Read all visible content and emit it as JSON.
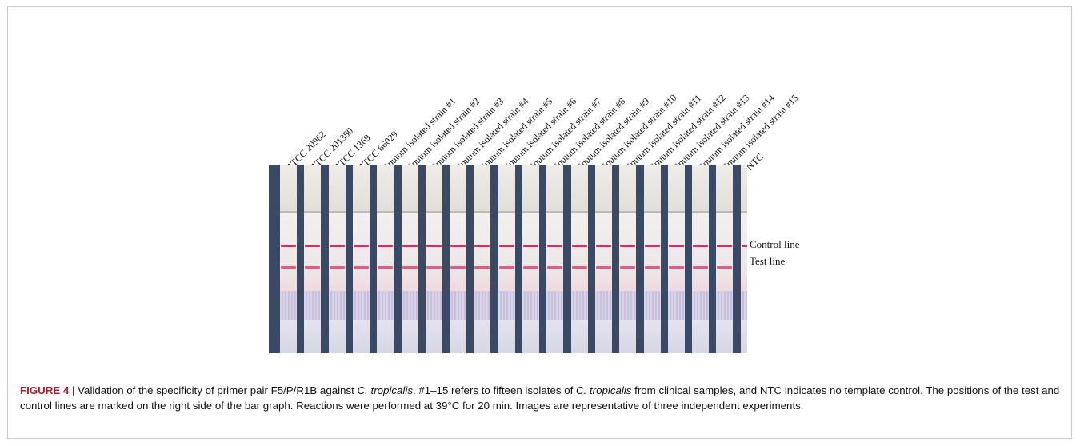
{
  "strip_labels": [
    "ATCC 20962",
    "ATCC 201380",
    "ATCC 1369",
    "ATCC 66029",
    "Sputum isolated strain #1",
    "Sputum isolated strain #2",
    "Sputum isolated strain #3",
    "Sputum isolated strain #4",
    "Sputum isolated strain #5",
    "Sputum isolated strain #6",
    "Sputum isolated strain #7",
    "Sputum isolated strain #8",
    "Sputum isolated strain #9",
    "Sputum isolated strain #10",
    "Sputum isolated strain #11",
    "Sputum isolated strain #12",
    "Sputum isolated strain #13",
    "Sputum isolated strain #14",
    "Sputum isolated strain #15",
    "NTC"
  ],
  "test_line_present": [
    true,
    true,
    true,
    true,
    true,
    true,
    true,
    true,
    true,
    true,
    true,
    true,
    true,
    true,
    true,
    true,
    true,
    true,
    true,
    false
  ],
  "control_line_label": "Control line",
  "test_line_label": "Test line",
  "caption": {
    "figure_label": "FIGURE 4",
    "separator": " | ",
    "part1": "Validation of the specificity of primer pair F5/P/R1B against ",
    "species_a": "C. tropicalis",
    "part2": ". #1–15 refers to fifteen isolates of ",
    "species_b": "C. tropicalis",
    "part3": " from clinical samples, and NTC indicates no template control. The positions of the test and control lines are marked on the right side of the bar graph. Reactions were performed at 39°C for 20 min. Images are representative of three independent experiments."
  },
  "colors": {
    "control_line": "#de2a67",
    "test_line": "#e35a89",
    "figure_label": "#b01b2e"
  }
}
